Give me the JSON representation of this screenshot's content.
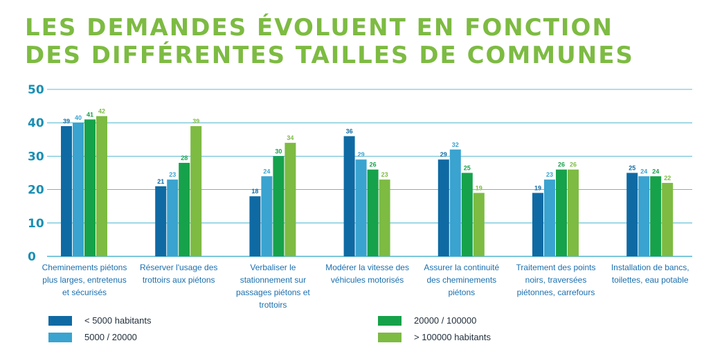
{
  "title": {
    "line1": "LES DEMANDES ÉVOLUENT EN FONCTION",
    "line2": "DES DIFFÉRENTES TAILLES DE COMMUNES"
  },
  "colors": {
    "title": "#7dbb42",
    "axis_text": "#1a8fb3",
    "grid": "#2aa6c5",
    "category_text": "#1a6fae",
    "series": [
      "#0f6aa3",
      "#3aa3cf",
      "#16a24a",
      "#7dbb42"
    ]
  },
  "chart_data": {
    "type": "bar",
    "title": "LES DEMANDES ÉVOLUENT EN FONCTION DES DIFFÉRENTES TAILLES DE COMMUNES",
    "xlabel": "",
    "ylabel": "",
    "ylim": [
      0,
      50
    ],
    "yticks": [
      "0",
      "10",
      "20",
      "30",
      "40",
      "50"
    ],
    "grid": true,
    "legend_position": "bottom",
    "categories": [
      [
        "Cheminements piétons",
        "plus larges, entretenus",
        "et sécurisés"
      ],
      [
        "Réserver l'usage des",
        "trottoirs aux piétons"
      ],
      [
        "Verbaliser le",
        "stationnement sur",
        "passages piétons et",
        "trottoirs"
      ],
      [
        "Modérer la vitesse des",
        "véhicules motorisés"
      ],
      [
        "Assurer la continuité",
        "des cheminements",
        "piétons"
      ],
      [
        "Traitement des points",
        "noirs, traversées",
        "piétonnes, carrefours"
      ],
      [
        "Installation de bancs,",
        "toilettes, eau potable"
      ]
    ],
    "series": [
      {
        "name": "< 5000 habitants",
        "values": [
          39,
          21,
          18,
          36,
          29,
          19,
          25
        ]
      },
      {
        "name": "5000 / 20000",
        "values": [
          40,
          23,
          24,
          29,
          32,
          23,
          24
        ]
      },
      {
        "name": "20000 / 100000",
        "values": [
          41,
          28,
          30,
          26,
          25,
          26,
          24
        ]
      },
      {
        "name": "> 100000 habitants",
        "values": [
          42,
          39,
          34,
          23,
          19,
          26,
          22
        ]
      }
    ]
  }
}
